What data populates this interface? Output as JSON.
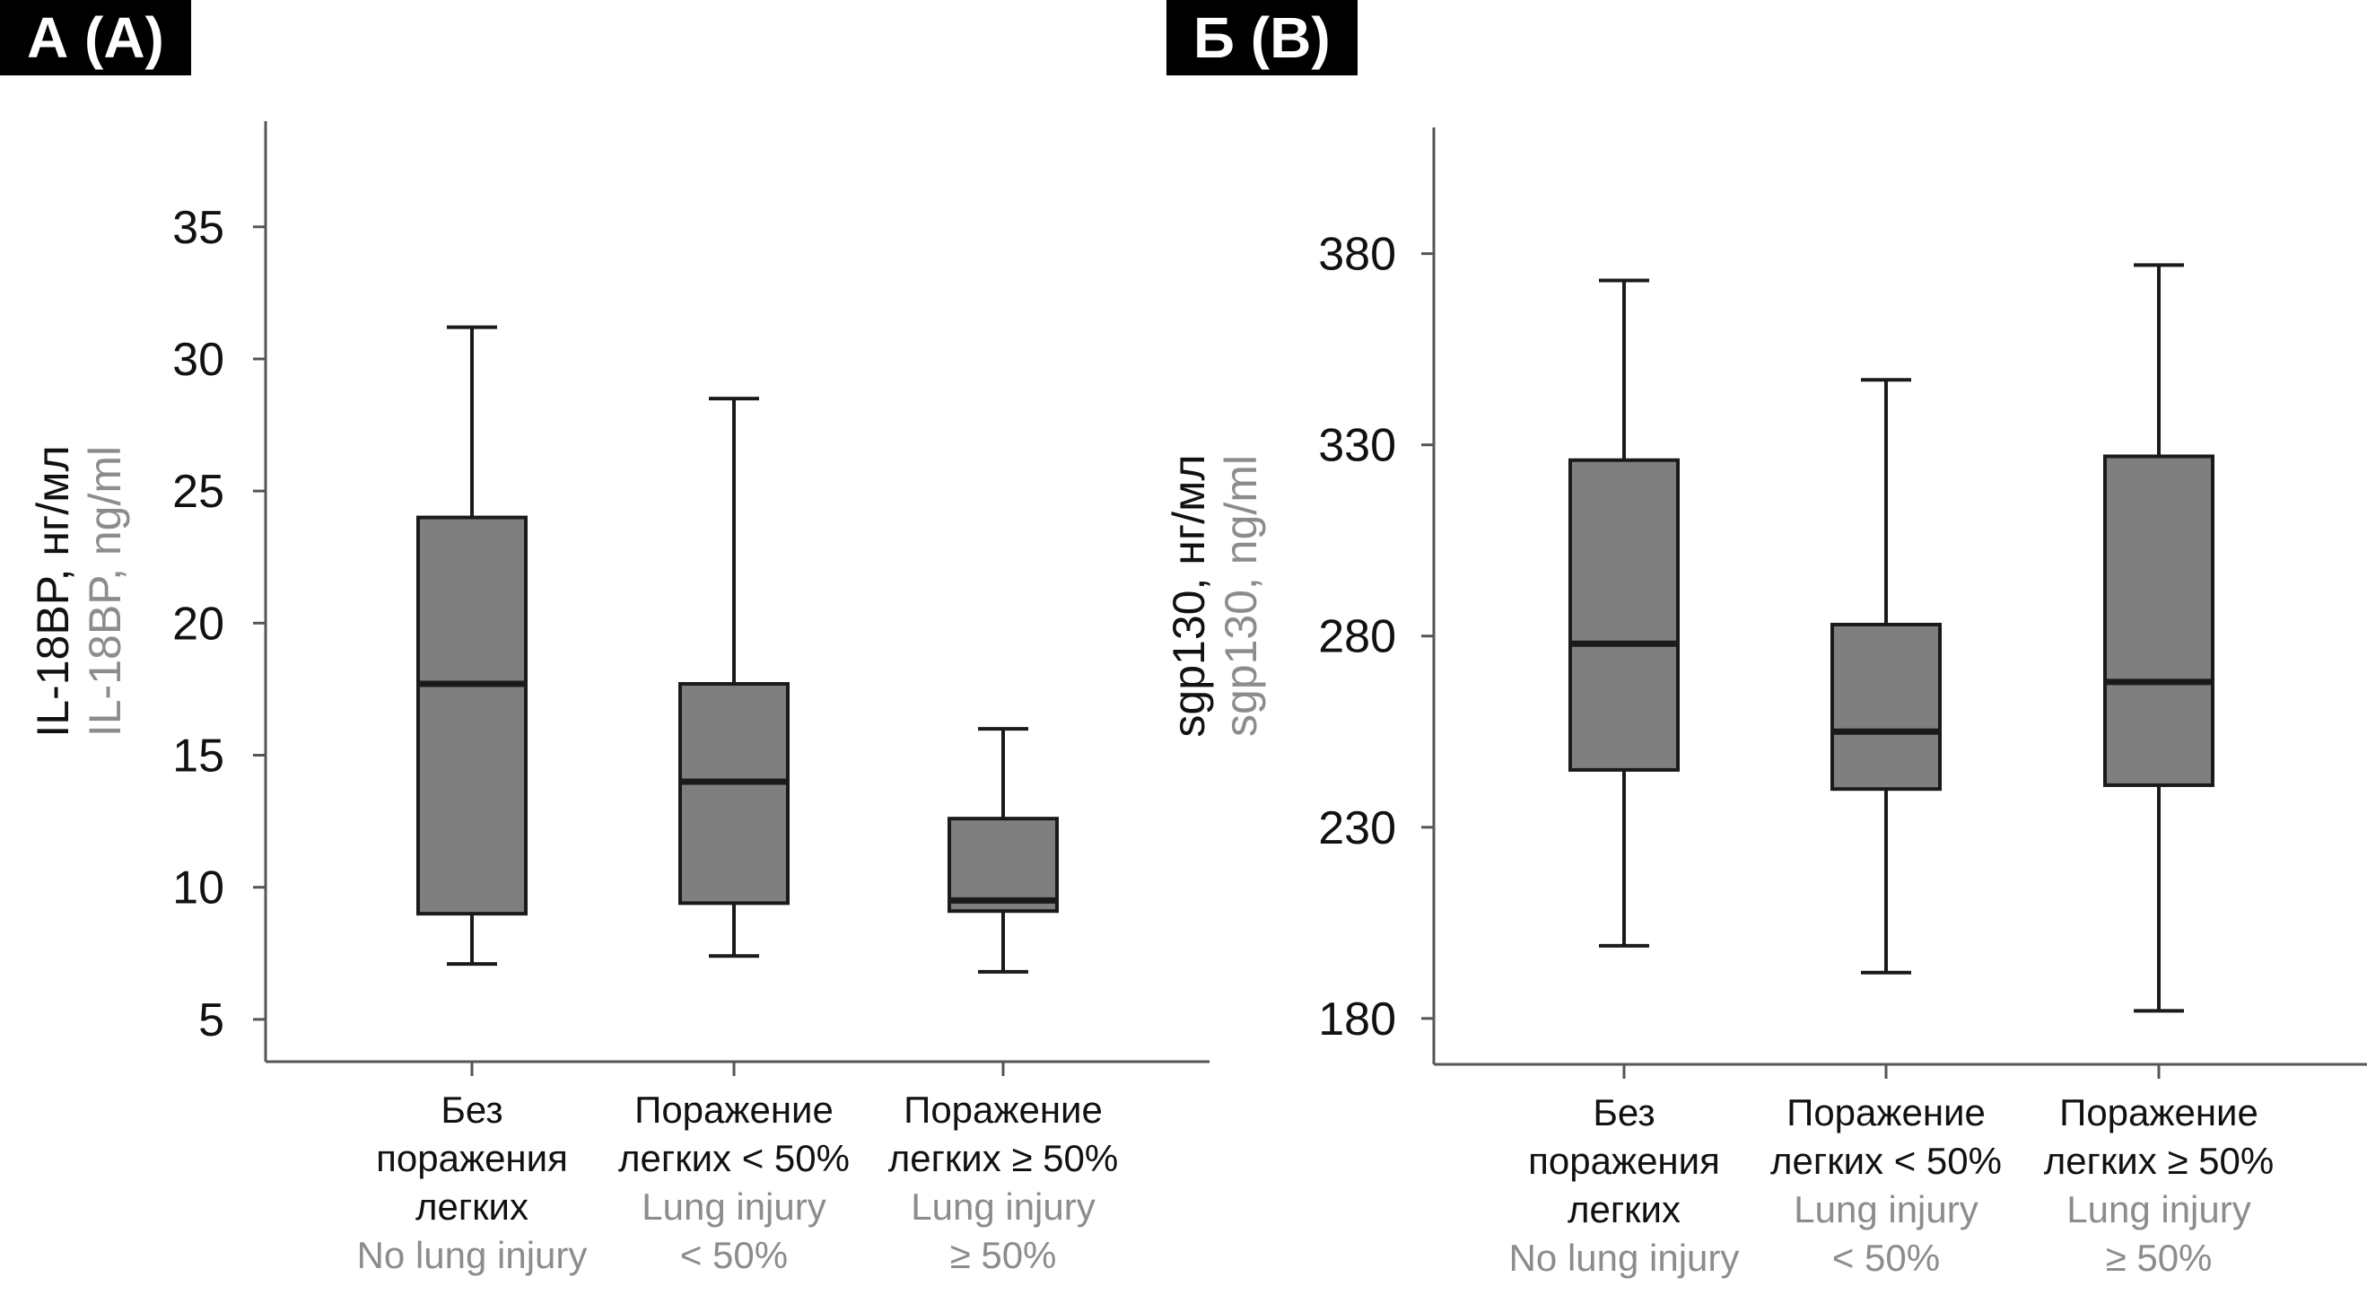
{
  "chart_data": [
    {
      "type": "box",
      "panel_label": "А (A)",
      "ylabel_ru": "IL-18BP, нг/мл",
      "ylabel_en": "IL-18BP, ng/ml",
      "ylim": [
        3.4,
        39
      ],
      "yticks": [
        5,
        10,
        15,
        20,
        25,
        30,
        35
      ],
      "grid": false,
      "categories": [
        {
          "ru": [
            "Без",
            "поражения",
            "легких"
          ],
          "en": [
            "No lung injury"
          ]
        },
        {
          "ru": [
            "Поражение",
            "легких < 50%"
          ],
          "en": [
            "Lung injury",
            "< 50%"
          ]
        },
        {
          "ru": [
            "Поражение",
            "легких ≥ 50%"
          ],
          "en": [
            "Lung injury",
            "≥ 50%"
          ]
        }
      ],
      "boxes": [
        {
          "min": 7.1,
          "q1": 9.0,
          "median": 17.7,
          "q3": 24.0,
          "max": 31.2
        },
        {
          "min": 7.4,
          "q1": 9.4,
          "median": 14.0,
          "q3": 17.7,
          "max": 28.5
        },
        {
          "min": 6.8,
          "q1": 9.1,
          "median": 9.5,
          "q3": 12.6,
          "max": 16.0
        }
      ]
    },
    {
      "type": "box",
      "panel_label": "Б (B)",
      "ylabel_ru": "sgp130, нг/мл",
      "ylabel_en": "sgp130, ng/ml",
      "ylim": [
        168,
        413
      ],
      "yticks": [
        180,
        230,
        280,
        330,
        380
      ],
      "grid": false,
      "categories": [
        {
          "ru": [
            "Без",
            "поражения",
            "легких"
          ],
          "en": [
            "No lung injury"
          ]
        },
        {
          "ru": [
            "Поражение",
            "легких < 50%"
          ],
          "en": [
            "Lung injury",
            "< 50%"
          ]
        },
        {
          "ru": [
            "Поражение",
            "легких ≥ 50%"
          ],
          "en": [
            "Lung injury",
            "≥ 50%"
          ]
        }
      ],
      "boxes": [
        {
          "min": 199,
          "q1": 245,
          "median": 278,
          "q3": 326,
          "max": 373
        },
        {
          "min": 192,
          "q1": 240,
          "median": 255,
          "q3": 283,
          "max": 347
        },
        {
          "min": 182,
          "q1": 241,
          "median": 268,
          "q3": 327,
          "max": 377
        }
      ]
    }
  ],
  "style": {
    "box_fill": "#7f7f7f",
    "line_color": "#1a1a1a",
    "axis_color": "#555555",
    "en_text_color": "#8c8c8c",
    "ru_text_color": "#111111"
  }
}
